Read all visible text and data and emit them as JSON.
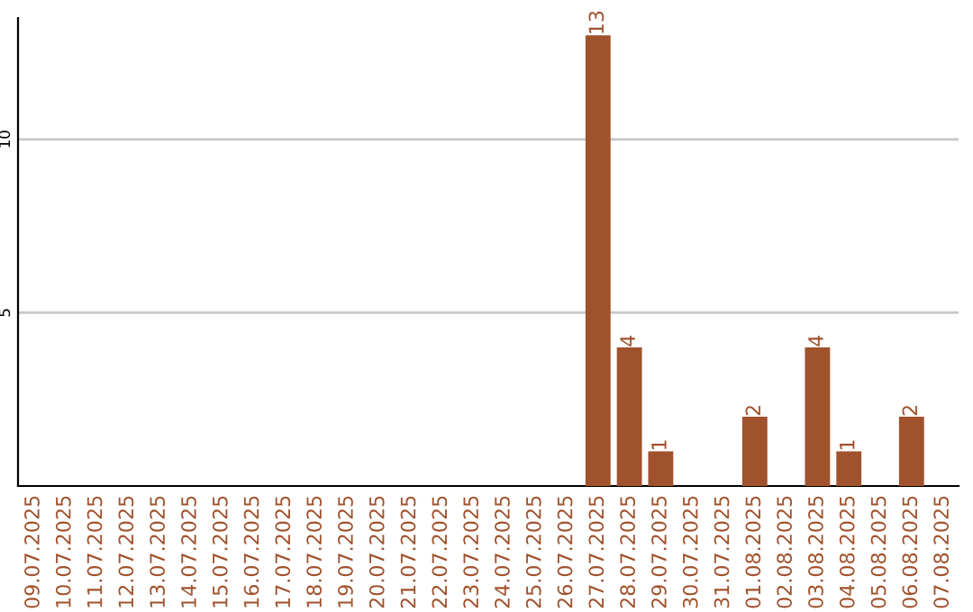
{
  "chart_data": {
    "type": "bar",
    "categories": [
      "09.07.2025",
      "10.07.2025",
      "11.07.2025",
      "12.07.2025",
      "13.07.2025",
      "14.07.2025",
      "15.07.2025",
      "16.07.2025",
      "17.07.2025",
      "18.07.2025",
      "19.07.2025",
      "20.07.2025",
      "21.07.2025",
      "22.07.2025",
      "23.07.2025",
      "24.07.2025",
      "25.07.2025",
      "26.07.2025",
      "27.07.2025",
      "28.07.2025",
      "29.07.2025",
      "30.07.2025",
      "31.07.2025",
      "01.08.2025",
      "02.08.2025",
      "03.08.2025",
      "04.08.2025",
      "05.08.2025",
      "06.08.2025",
      "07.08.2025"
    ],
    "values": [
      0,
      0,
      0,
      0,
      0,
      0,
      0,
      0,
      0,
      0,
      0,
      0,
      0,
      0,
      0,
      0,
      0,
      0,
      13,
      4,
      1,
      0,
      0,
      2,
      0,
      4,
      1,
      0,
      2,
      0
    ],
    "value_labels": [
      null,
      null,
      null,
      null,
      null,
      null,
      null,
      null,
      null,
      null,
      null,
      null,
      null,
      null,
      null,
      null,
      null,
      null,
      "13",
      "4",
      "1",
      null,
      null,
      "2",
      null,
      "4",
      "1",
      null,
      "2",
      null
    ],
    "color": "#a0522d",
    "ylim": [
      0,
      13.5
    ],
    "yticks": [
      5,
      10
    ],
    "grid": "y",
    "legend": false
  }
}
